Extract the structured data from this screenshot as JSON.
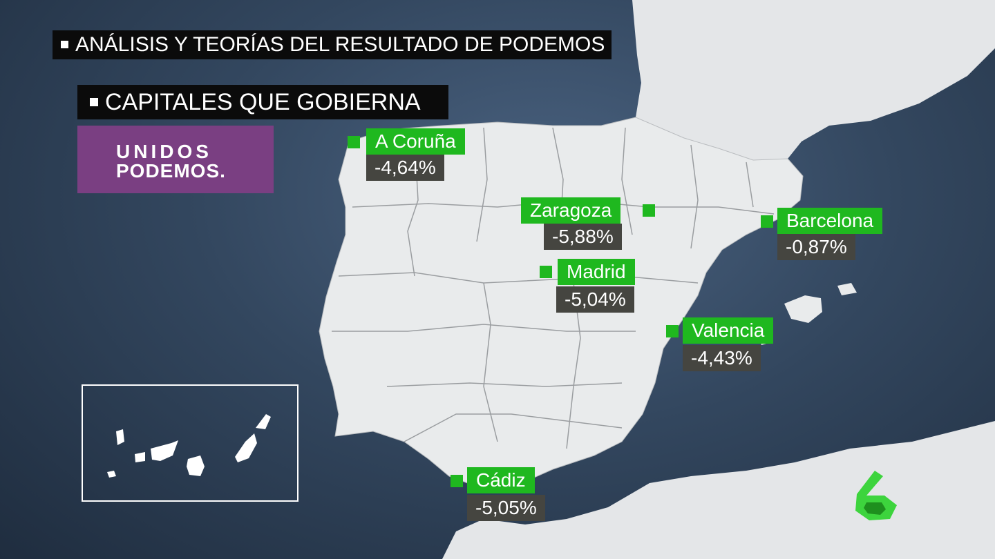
{
  "header": {
    "title": "ANÁLISIS Y TEORÍAS DEL RESULTADO DE PODEMOS",
    "section": "CAPITALES QUE GOBIERNA"
  },
  "party_logo": {
    "line1": "UNIDOS",
    "line2": "PODEMOS."
  },
  "cities": [
    {
      "name": "A Coruña",
      "value": "-4,64%"
    },
    {
      "name": "Zaragoza",
      "value": "-5,88%"
    },
    {
      "name": "Barcelona",
      "value": "-0,87%"
    },
    {
      "name": "Madrid",
      "value": "-5,04%"
    },
    {
      "name": "Valencia",
      "value": "-4,43%"
    },
    {
      "name": "Cádiz",
      "value": "-5,05%"
    }
  ],
  "colors": {
    "sea": "#33475f",
    "land": "#e9ebec",
    "city_label": "#1fb81f",
    "value_label": "#454540",
    "party_purple": "#7a3f82",
    "channel_green": "#3dd43d"
  },
  "channel_logo": "lasexta-6-logo"
}
